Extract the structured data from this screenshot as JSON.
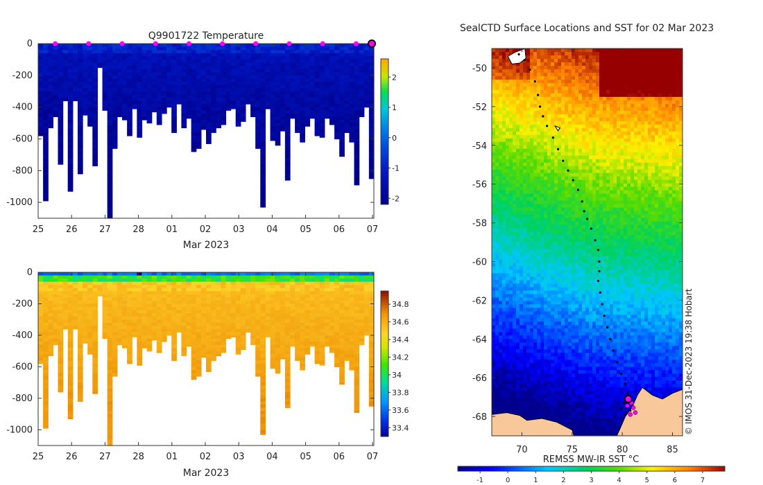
{
  "chart_data": [
    {
      "type": "heatmap",
      "title": "Q9901722  Temperature",
      "xlabel": "Mar 2023",
      "x_tick_labels": [
        "25",
        "26",
        "27",
        "28",
        "01",
        "02",
        "03",
        "04",
        "05",
        "06",
        "07"
      ],
      "y_tick_values": [
        0,
        -200,
        -400,
        -600,
        -800,
        -1000
      ],
      "ylim": [
        -1100,
        0
      ],
      "colorbar": {
        "ticks": [
          2,
          1,
          0,
          -1,
          -2
        ],
        "range": [
          -2.2,
          2.6
        ]
      },
      "profile_bottoms": [
        -580,
        -990,
        -530,
        -460,
        -760,
        -360,
        -930,
        -360,
        -820,
        -450,
        -520,
        -770,
        -150,
        -420,
        -1100,
        -660,
        -460,
        -480,
        -580,
        -410,
        -590,
        -480,
        -500,
        -430,
        -510,
        -440,
        -400,
        -560,
        -380,
        -530,
        -470,
        -680,
        -660,
        -540,
        -630,
        -560,
        -530,
        -510,
        -420,
        -410,
        -520,
        -490,
        -380,
        -460,
        -660,
        -1030,
        -410,
        -610,
        -640,
        -550,
        -860,
        -470,
        -560,
        -620,
        -520,
        -470,
        -580,
        -590,
        -470,
        -510,
        -600,
        -710,
        -560,
        -620,
        -890,
        -460,
        -400,
        -850
      ]
    },
    {
      "type": "heatmap",
      "title": "",
      "xlabel": "Mar 2023",
      "x_tick_labels": [
        "25",
        "26",
        "27",
        "28",
        "01",
        "02",
        "03",
        "04",
        "05",
        "06",
        "07"
      ],
      "y_tick_values": [
        0,
        -200,
        -400,
        -600,
        -800,
        -1000
      ],
      "ylim": [
        -1100,
        0
      ],
      "colorbar": {
        "ticks": [
          34.8,
          34.6,
          34.4,
          34.2,
          34,
          33.8,
          33.6,
          33.4
        ],
        "range": [
          33.3,
          34.95
        ]
      },
      "profile_bottoms": [
        -580,
        -990,
        -530,
        -460,
        -760,
        -360,
        -930,
        -360,
        -820,
        -450,
        -520,
        -770,
        -150,
        -420,
        -1100,
        -660,
        -460,
        -480,
        -580,
        -410,
        -590,
        -480,
        -500,
        -430,
        -510,
        -440,
        -400,
        -560,
        -380,
        -530,
        -470,
        -680,
        -660,
        -540,
        -630,
        -560,
        -530,
        -510,
        -420,
        -410,
        -520,
        -490,
        -380,
        -460,
        -660,
        -1030,
        -410,
        -610,
        -640,
        -550,
        -860,
        -470,
        -560,
        -620,
        -520,
        -470,
        -580,
        -590,
        -470,
        -510,
        -600,
        -710,
        -560,
        -620,
        -890,
        -460,
        -400,
        -850
      ]
    },
    {
      "type": "heatmap",
      "title": "SealCTD Surface Locations and SST for 02 Mar 2023",
      "xlabel": "",
      "x_tick_labels": [
        "70",
        "75",
        "80",
        "85"
      ],
      "x_tick_values": [
        70,
        75,
        80,
        85
      ],
      "xlim": [
        67,
        86
      ],
      "y_tick_labels": [
        "-50",
        "-52",
        "-54",
        "-56",
        "-58",
        "-60",
        "-62",
        "-64",
        "-66",
        "-68"
      ],
      "y_tick_values": [
        -50,
        -52,
        -54,
        -56,
        -58,
        -60,
        -62,
        -64,
        -66,
        -68
      ],
      "ylim": [
        -69,
        -49
      ],
      "track": [
        [
          69.7,
          -49.3
        ],
        [
          70.3,
          -49.6
        ],
        [
          70.8,
          -50.1
        ],
        [
          71.3,
          -50.7
        ],
        [
          71.6,
          -51.4
        ],
        [
          71.8,
          -52.0
        ],
        [
          72.1,
          -52.5
        ],
        [
          72.5,
          -53.0
        ],
        [
          73.1,
          -53.6
        ],
        [
          73.6,
          -54.2
        ],
        [
          74.1,
          -54.8
        ],
        [
          74.6,
          -55.3
        ],
        [
          75.1,
          -55.8
        ],
        [
          75.6,
          -56.3
        ],
        [
          76.0,
          -56.9
        ],
        [
          76.2,
          -57.4
        ],
        [
          76.5,
          -57.8
        ],
        [
          76.9,
          -58.3
        ],
        [
          77.3,
          -58.9
        ],
        [
          77.6,
          -59.4
        ],
        [
          77.7,
          -60.0
        ],
        [
          77.7,
          -60.5
        ],
        [
          77.6,
          -61.0
        ],
        [
          77.8,
          -61.6
        ],
        [
          78.0,
          -62.2
        ],
        [
          78.2,
          -62.8
        ],
        [
          78.5,
          -63.4
        ],
        [
          78.8,
          -64.0
        ],
        [
          79.1,
          -64.6
        ],
        [
          79.5,
          -65.2
        ],
        [
          79.9,
          -65.8
        ],
        [
          80.3,
          -66.3
        ],
        [
          80.5,
          -66.8
        ],
        [
          80.2,
          -67.3
        ],
        [
          79.9,
          -67.6
        ],
        [
          80.3,
          -67.9
        ],
        [
          80.8,
          -67.7
        ]
      ],
      "colorbar": {
        "label": "REMSS MW-IR SST °C",
        "ticks": [
          -1,
          0,
          1,
          2,
          3,
          4,
          5,
          6,
          7
        ],
        "range": [
          -1.8,
          7.8
        ]
      },
      "annotation": "© IMOS 31-Dec-2023 19:38 Hobart"
    }
  ],
  "colors": {
    "land": "#f8c89a",
    "track": "#000000",
    "marker": "#ff00ff",
    "missing": "#ffffff"
  }
}
